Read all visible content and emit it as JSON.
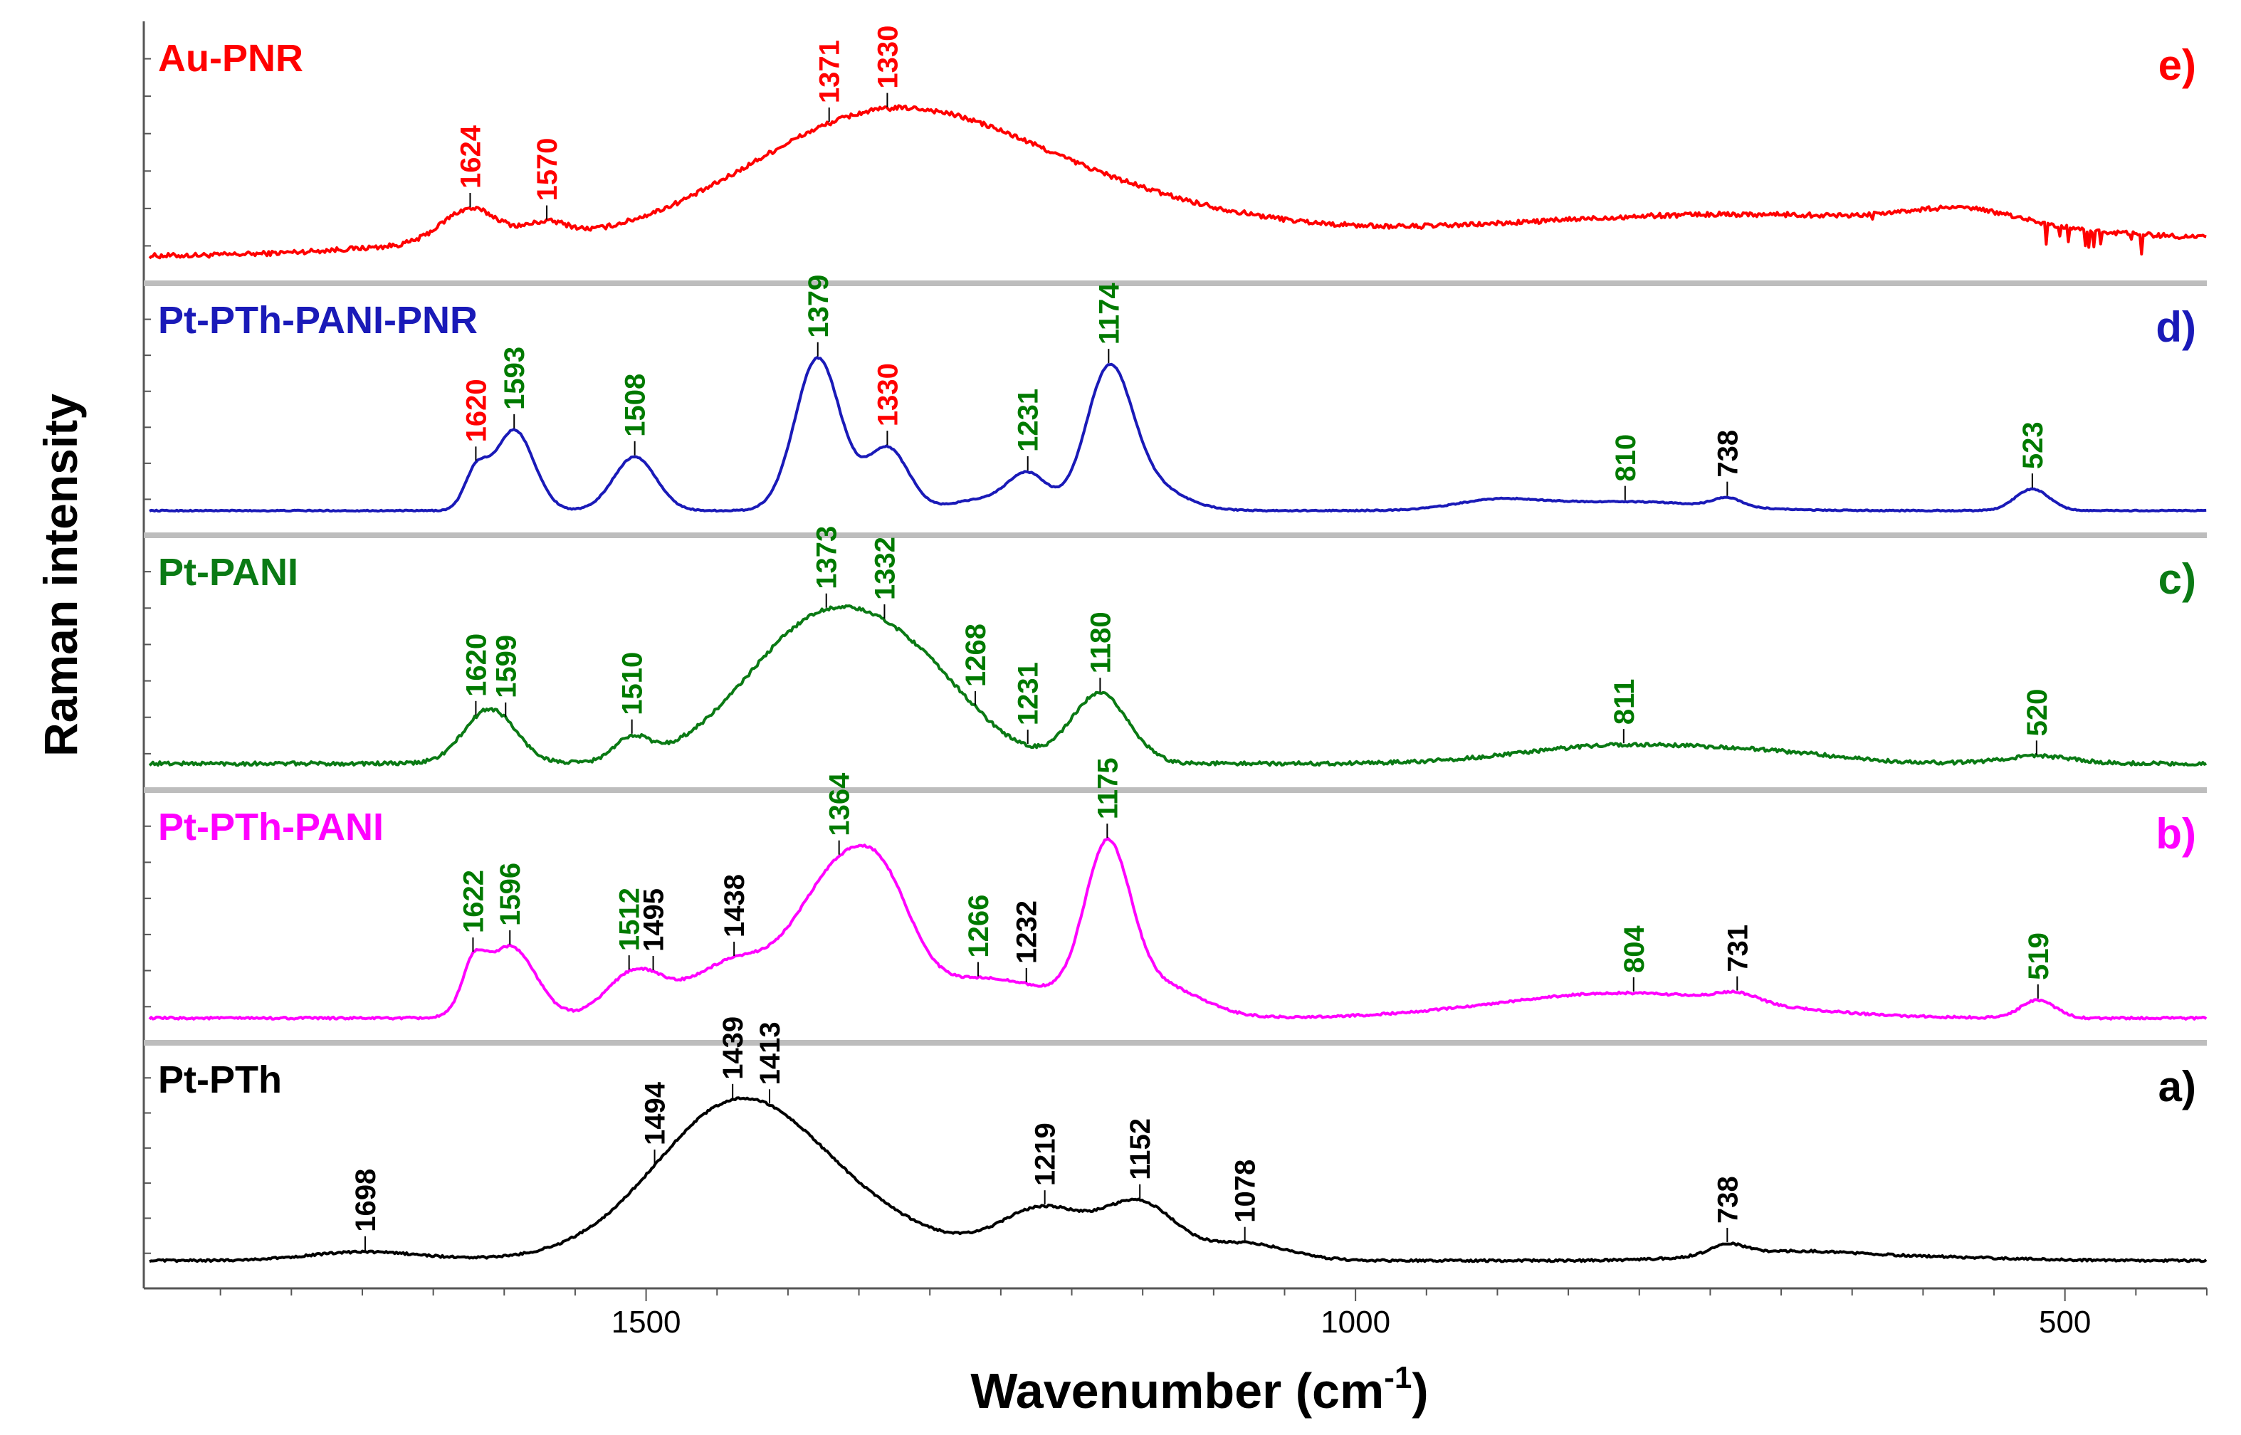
{
  "chart_data": {
    "type": "line",
    "xlabel": "Wavenumber (cm-1)",
    "xlabel_main": "Wavenumber (cm",
    "xlabel_sup": "-1",
    "xlabel_tail": ")",
    "ylabel": "Raman intensity",
    "xlim": [
      1850,
      400
    ],
    "x_ticks": [
      1500,
      1000,
      500
    ],
    "x_tick_labels": [
      "1500",
      "1000",
      "500"
    ],
    "panels": [
      {
        "id": "e",
        "name": "Au-PNR",
        "tag": "e)",
        "color": "#ff0000",
        "baseline": 0.06,
        "features": [
          [
            1715,
            0.16,
            0,
            0.45
          ],
          [
            1624,
            0.18,
            20,
            0
          ],
          [
            1570,
            0.08,
            15,
            0
          ],
          [
            1338,
            0.6,
            95,
            0
          ],
          [
            1200,
            0.22,
            110,
            0
          ],
          [
            730,
            0.15,
            180,
            0
          ],
          [
            570,
            0.08,
            40,
            0
          ]
        ],
        "noise": 0.025,
        "peaks": [
          {
            "value": 1624,
            "label": "1624",
            "color": "#ff0000"
          },
          {
            "value": 1570,
            "label": "1570",
            "color": "#ff0000"
          },
          {
            "value": 1371,
            "label": "1371",
            "color": "#ff0000"
          },
          {
            "value": 1330,
            "label": "1330",
            "color": "#ff0000"
          }
        ]
      },
      {
        "id": "d",
        "name": "Pt-PTh-PANI-PNR",
        "tag": "d)",
        "color": "#1a1ab8",
        "baseline": 0.05,
        "features": [
          [
            1620,
            0.2,
            8,
            0
          ],
          [
            1593,
            0.45,
            14,
            0
          ],
          [
            1508,
            0.3,
            15,
            0
          ],
          [
            1379,
            0.85,
            16,
            0
          ],
          [
            1330,
            0.35,
            15,
            0
          ],
          [
            1265,
            0.06,
            20,
            0
          ],
          [
            1231,
            0.2,
            14,
            0
          ],
          [
            1174,
            0.72,
            16,
            0
          ],
          [
            1150,
            0.15,
            25,
            0
          ],
          [
            900,
            0.05,
            30,
            0
          ],
          [
            810,
            0.05,
            60,
            0
          ],
          [
            738,
            0.05,
            10,
            0
          ],
          [
            523,
            0.12,
            12,
            0
          ]
        ],
        "noise": 0.006,
        "peaks": [
          {
            "value": 1620,
            "label_parts": [
              "16",
              "20"
            ],
            "part_colors": [
              "#ff0000",
              "#ff0000"
            ],
            "color": "#ff0000"
          },
          {
            "value": 1593,
            "label": "1593",
            "color": "#007a00"
          },
          {
            "value": 1508,
            "label": "1508",
            "color": "#007a00"
          },
          {
            "value": 1379,
            "label": "1379",
            "color": "#007a00"
          },
          {
            "value": 1330,
            "label": "1330",
            "color": "#ff0000"
          },
          {
            "value": 1231,
            "label": "1231",
            "color": "#007a00"
          },
          {
            "value": 1174,
            "label": "1174",
            "color": "#007a00"
          },
          {
            "value": 810,
            "label": "810",
            "color": "#007a00"
          },
          {
            "value": 738,
            "label": "738",
            "color": "#000000"
          },
          {
            "value": 523,
            "label": "523",
            "color": "#007a00"
          }
        ]
      },
      {
        "id": "c",
        "name": "Pt-PANI",
        "tag": "c)",
        "color": "#0a7a14",
        "baseline": 0.06,
        "features": [
          [
            1610,
            0.3,
            18,
            0
          ],
          [
            1510,
            0.12,
            12,
            0
          ],
          [
            1373,
            0.8,
            55,
            0
          ],
          [
            1300,
            0.25,
            40,
            0
          ],
          [
            1180,
            0.38,
            20,
            0
          ],
          [
            811,
            0.1,
            70,
            0
          ],
          [
            700,
            0.04,
            50,
            0
          ],
          [
            520,
            0.04,
            25,
            0
          ]
        ],
        "noise": 0.02,
        "peaks": [
          {
            "value": 1620,
            "label": "1620",
            "color": "#007a00"
          },
          {
            "value": 1599,
            "label": "1599",
            "color": "#007a00"
          },
          {
            "value": 1510,
            "label": "1510",
            "color": "#007a00"
          },
          {
            "value": 1373,
            "label": "1373",
            "color": "#007a00"
          },
          {
            "value": 1332,
            "label": "1332",
            "color": "#007a00"
          },
          {
            "value": 1268,
            "label": "1268",
            "color": "#007a00"
          },
          {
            "value": 1231,
            "label": "1231",
            "color": "#007a00"
          },
          {
            "value": 1180,
            "label": "1180",
            "color": "#007a00"
          },
          {
            "value": 811,
            "label": "811",
            "color": "#007a00"
          },
          {
            "value": 520,
            "label": "520",
            "color": "#007a00"
          }
        ]
      },
      {
        "id": "b",
        "name": "Pt-PTh-PANI",
        "tag": "b)",
        "color": "#ff00ff",
        "baseline": 0.05,
        "features": [
          [
            1622,
            0.22,
            8,
            0
          ],
          [
            1596,
            0.4,
            18,
            0
          ],
          [
            1508,
            0.25,
            20,
            0
          ],
          [
            1440,
            0.3,
            30,
            0
          ],
          [
            1364,
            0.78,
            30,
            0
          ],
          [
            1330,
            0.35,
            20,
            0
          ],
          [
            1260,
            0.22,
            50,
            0
          ],
          [
            1175,
            0.85,
            16,
            0
          ],
          [
            1140,
            0.18,
            30,
            0
          ],
          [
            810,
            0.14,
            90,
            0
          ],
          [
            731,
            0.05,
            15,
            0
          ],
          [
            519,
            0.1,
            12,
            0
          ]
        ],
        "noise": 0.012,
        "peaks": [
          {
            "value": 1622,
            "label": "1622",
            "color": "#007a00"
          },
          {
            "value": 1596,
            "label": "1596",
            "color": "#007a00"
          },
          {
            "value": 1512,
            "label": "1512",
            "color": "#007a00"
          },
          {
            "value": 1495,
            "label": "1495",
            "color": "#000000"
          },
          {
            "value": 1438,
            "label": "1438",
            "color": "#000000"
          },
          {
            "value": 1364,
            "label": "1364",
            "color": "#007a00"
          },
          {
            "value": 1266,
            "label": "1266",
            "color": "#007a00"
          },
          {
            "value": 1232,
            "label": "1232",
            "color": "#000000"
          },
          {
            "value": 1175,
            "label": "1175",
            "color": "#007a00"
          },
          {
            "value": 804,
            "label": "804",
            "color": "#007a00"
          },
          {
            "value": 731,
            "label": "731",
            "color": "#000000"
          },
          {
            "value": 519,
            "label": "519",
            "color": "#007a00"
          }
        ]
      },
      {
        "id": "a",
        "name": "Pt-PTh",
        "tag": "a)",
        "color": "#000000",
        "baseline": 0.07,
        "features": [
          [
            1698,
            0.05,
            40,
            0
          ],
          [
            1439,
            0.62,
            55,
            0
          ],
          [
            1400,
            0.35,
            80,
            0
          ],
          [
            1219,
            0.28,
            30,
            0
          ],
          [
            1152,
            0.32,
            25,
            0
          ],
          [
            1078,
            0.1,
            30,
            0
          ],
          [
            738,
            0.06,
            12,
            0
          ],
          [
            700,
            0.05,
            50,
            0
          ],
          [
            600,
            0.02,
            60,
            0
          ]
        ],
        "noise": 0.012,
        "peaks": [
          {
            "value": 1698,
            "label": "1698",
            "color": "#000000"
          },
          {
            "value": 1494,
            "label": "1494",
            "color": "#000000"
          },
          {
            "value": 1439,
            "label": "1439",
            "color": "#000000"
          },
          {
            "value": 1413,
            "label": "1413",
            "color": "#000000"
          },
          {
            "value": 1219,
            "label": "1219",
            "color": "#000000"
          },
          {
            "value": 1152,
            "label": "1152",
            "color": "#000000"
          },
          {
            "value": 1078,
            "label": "1078",
            "color": "#000000"
          },
          {
            "value": 738,
            "label": "738",
            "color": "#000000"
          }
        ]
      }
    ]
  }
}
